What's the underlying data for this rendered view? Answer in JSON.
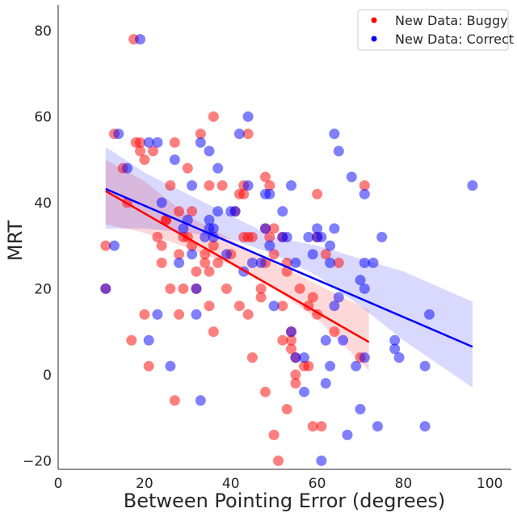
{
  "chart_data": {
    "type": "scatter",
    "xlabel": "Between Pointing Error (degrees)",
    "ylabel": "MRT",
    "xlim": [
      0,
      105
    ],
    "ylim": [
      -22,
      86
    ],
    "xticks": [
      0,
      20,
      40,
      60,
      80,
      100
    ],
    "yticks": [
      -20,
      0,
      20,
      40,
      60,
      80
    ],
    "grid": false,
    "legend_position": "top-right",
    "series": [
      {
        "name": "New Data: Buggy",
        "color": "#ff0000",
        "points": [
          [
            11,
            30
          ],
          [
            11,
            20
          ],
          [
            13,
            56
          ],
          [
            15,
            48
          ],
          [
            16,
            40
          ],
          [
            17,
            8
          ],
          [
            17.5,
            78
          ],
          [
            18,
            54
          ],
          [
            19,
            54
          ],
          [
            19,
            52
          ],
          [
            20,
            50
          ],
          [
            20,
            14
          ],
          [
            21,
            2
          ],
          [
            22,
            52
          ],
          [
            23,
            32
          ],
          [
            24,
            26
          ],
          [
            24,
            30
          ],
          [
            25,
            36
          ],
          [
            25,
            36
          ],
          [
            26,
            44
          ],
          [
            26,
            20
          ],
          [
            27,
            54
          ],
          [
            27,
            -6
          ],
          [
            28,
            38
          ],
          [
            28,
            28
          ],
          [
            28,
            14
          ],
          [
            29,
            20
          ],
          [
            29,
            32
          ],
          [
            30,
            48
          ],
          [
            30,
            32
          ],
          [
            31,
            38
          ],
          [
            31,
            30
          ],
          [
            32,
            24
          ],
          [
            32,
            20
          ],
          [
            33,
            56
          ],
          [
            34,
            26
          ],
          [
            34,
            28
          ],
          [
            35,
            44
          ],
          [
            35,
            24
          ],
          [
            35,
            16
          ],
          [
            36,
            60
          ],
          [
            36,
            10
          ],
          [
            36,
            30
          ],
          [
            37,
            26
          ],
          [
            38,
            44
          ],
          [
            39,
            20
          ],
          [
            40,
            28
          ],
          [
            41,
            38
          ],
          [
            42,
            16
          ],
          [
            42,
            42
          ],
          [
            43,
            42
          ],
          [
            43,
            32
          ],
          [
            43,
            44
          ],
          [
            44,
            56
          ],
          [
            44,
            14
          ],
          [
            44,
            32
          ],
          [
            45,
            4
          ],
          [
            45,
            32
          ],
          [
            47,
            20
          ],
          [
            47,
            18
          ],
          [
            48,
            26
          ],
          [
            48,
            -4
          ],
          [
            48,
            34
          ],
          [
            48,
            46
          ],
          [
            49,
            44
          ],
          [
            49,
            32
          ],
          [
            50,
            -14
          ],
          [
            50,
            28
          ],
          [
            50,
            34
          ],
          [
            51,
            -20
          ],
          [
            52,
            32
          ],
          [
            52,
            8
          ],
          [
            52,
            16
          ],
          [
            53,
            -8
          ],
          [
            53,
            26
          ],
          [
            53,
            24
          ],
          [
            54,
            8
          ],
          [
            54,
            6
          ],
          [
            54,
            10
          ],
          [
            55,
            0
          ],
          [
            55,
            -2
          ],
          [
            55,
            4
          ],
          [
            56,
            20
          ],
          [
            57,
            2
          ],
          [
            58,
            16
          ],
          [
            58,
            2
          ],
          [
            59,
            -12
          ],
          [
            59,
            18
          ],
          [
            60,
            42
          ],
          [
            60,
            32
          ],
          [
            60,
            14
          ],
          [
            61,
            -12
          ],
          [
            62,
            28
          ],
          [
            64,
            10
          ],
          [
            65,
            26
          ],
          [
            70,
            4
          ],
          [
            71,
            44
          ]
        ],
        "regression": {
          "x": [
            11,
            72
          ],
          "y": [
            42.7,
            7.6
          ]
        },
        "ci_band": {
          "x": [
            11,
            20,
            30,
            40,
            50,
            60,
            72
          ],
          "lower": [
            35,
            33,
            29.5,
            25.5,
            20,
            13,
            1
          ],
          "upper": [
            50,
            45,
            37,
            31.5,
            26,
            21,
            15
          ]
        }
      },
      {
        "name": "New Data: Correct",
        "color": "#0000ff",
        "points": [
          [
            11,
            20
          ],
          [
            13,
            30
          ],
          [
            14,
            56
          ],
          [
            16,
            48
          ],
          [
            19,
            78
          ],
          [
            21,
            54
          ],
          [
            21,
            8
          ],
          [
            23,
            54
          ],
          [
            23,
            14
          ],
          [
            24,
            40
          ],
          [
            26,
            2
          ],
          [
            27,
            50
          ],
          [
            28,
            26
          ],
          [
            29,
            34
          ],
          [
            30,
            36
          ],
          [
            31,
            44
          ],
          [
            31,
            28
          ],
          [
            32,
            14
          ],
          [
            32,
            20
          ],
          [
            33,
            -6
          ],
          [
            33,
            54
          ],
          [
            34,
            32
          ],
          [
            35,
            36
          ],
          [
            35,
            52
          ],
          [
            35,
            34
          ],
          [
            36,
            32
          ],
          [
            36,
            34
          ],
          [
            37,
            48
          ],
          [
            37,
            38
          ],
          [
            39,
            28
          ],
          [
            40,
            38
          ],
          [
            41,
            38
          ],
          [
            42,
            56
          ],
          [
            43,
            24
          ],
          [
            44,
            60
          ],
          [
            44,
            44
          ],
          [
            45,
            26
          ],
          [
            47,
            26
          ],
          [
            48,
            34
          ],
          [
            48,
            42
          ],
          [
            49,
            42
          ],
          [
            49,
            30
          ],
          [
            50,
            16
          ],
          [
            52,
            38
          ],
          [
            52,
            32
          ],
          [
            53,
            32
          ],
          [
            54,
            44
          ],
          [
            54,
            10
          ],
          [
            55,
            4
          ],
          [
            55,
            26
          ],
          [
            57,
            -4
          ],
          [
            57,
            4
          ],
          [
            58,
            32
          ],
          [
            59,
            28
          ],
          [
            60,
            34
          ],
          [
            60,
            32
          ],
          [
            61,
            -20
          ],
          [
            61,
            32
          ],
          [
            62,
            -2
          ],
          [
            62,
            8
          ],
          [
            63,
            26
          ],
          [
            63,
            30
          ],
          [
            63,
            2
          ],
          [
            64,
            56
          ],
          [
            64,
            34
          ],
          [
            65,
            52
          ],
          [
            64,
            16
          ],
          [
            65,
            18
          ],
          [
            66,
            8
          ],
          [
            67,
            -14
          ],
          [
            68,
            46
          ],
          [
            69,
            2
          ],
          [
            70,
            -8
          ],
          [
            70,
            22
          ],
          [
            71,
            20
          ],
          [
            71,
            42
          ],
          [
            71,
            26
          ],
          [
            71,
            4
          ],
          [
            73,
            26
          ],
          [
            74,
            -12
          ],
          [
            75,
            32
          ],
          [
            78,
            8
          ],
          [
            78,
            6
          ],
          [
            79,
            4
          ],
          [
            85,
            -12
          ],
          [
            85,
            2
          ],
          [
            86,
            14
          ],
          [
            96,
            44
          ]
        ],
        "regression": {
          "x": [
            11,
            96
          ],
          "y": [
            43.2,
            6.5
          ]
        },
        "ci_band": {
          "x": [
            11,
            20,
            30,
            40,
            50,
            60,
            70,
            80,
            96
          ],
          "lower": [
            34,
            34,
            33,
            31.5,
            28,
            23,
            16,
            8,
            -3
          ],
          "upper": [
            53,
            47,
            42,
            37,
            32,
            30,
            27,
            24,
            17
          ]
        }
      }
    ]
  }
}
